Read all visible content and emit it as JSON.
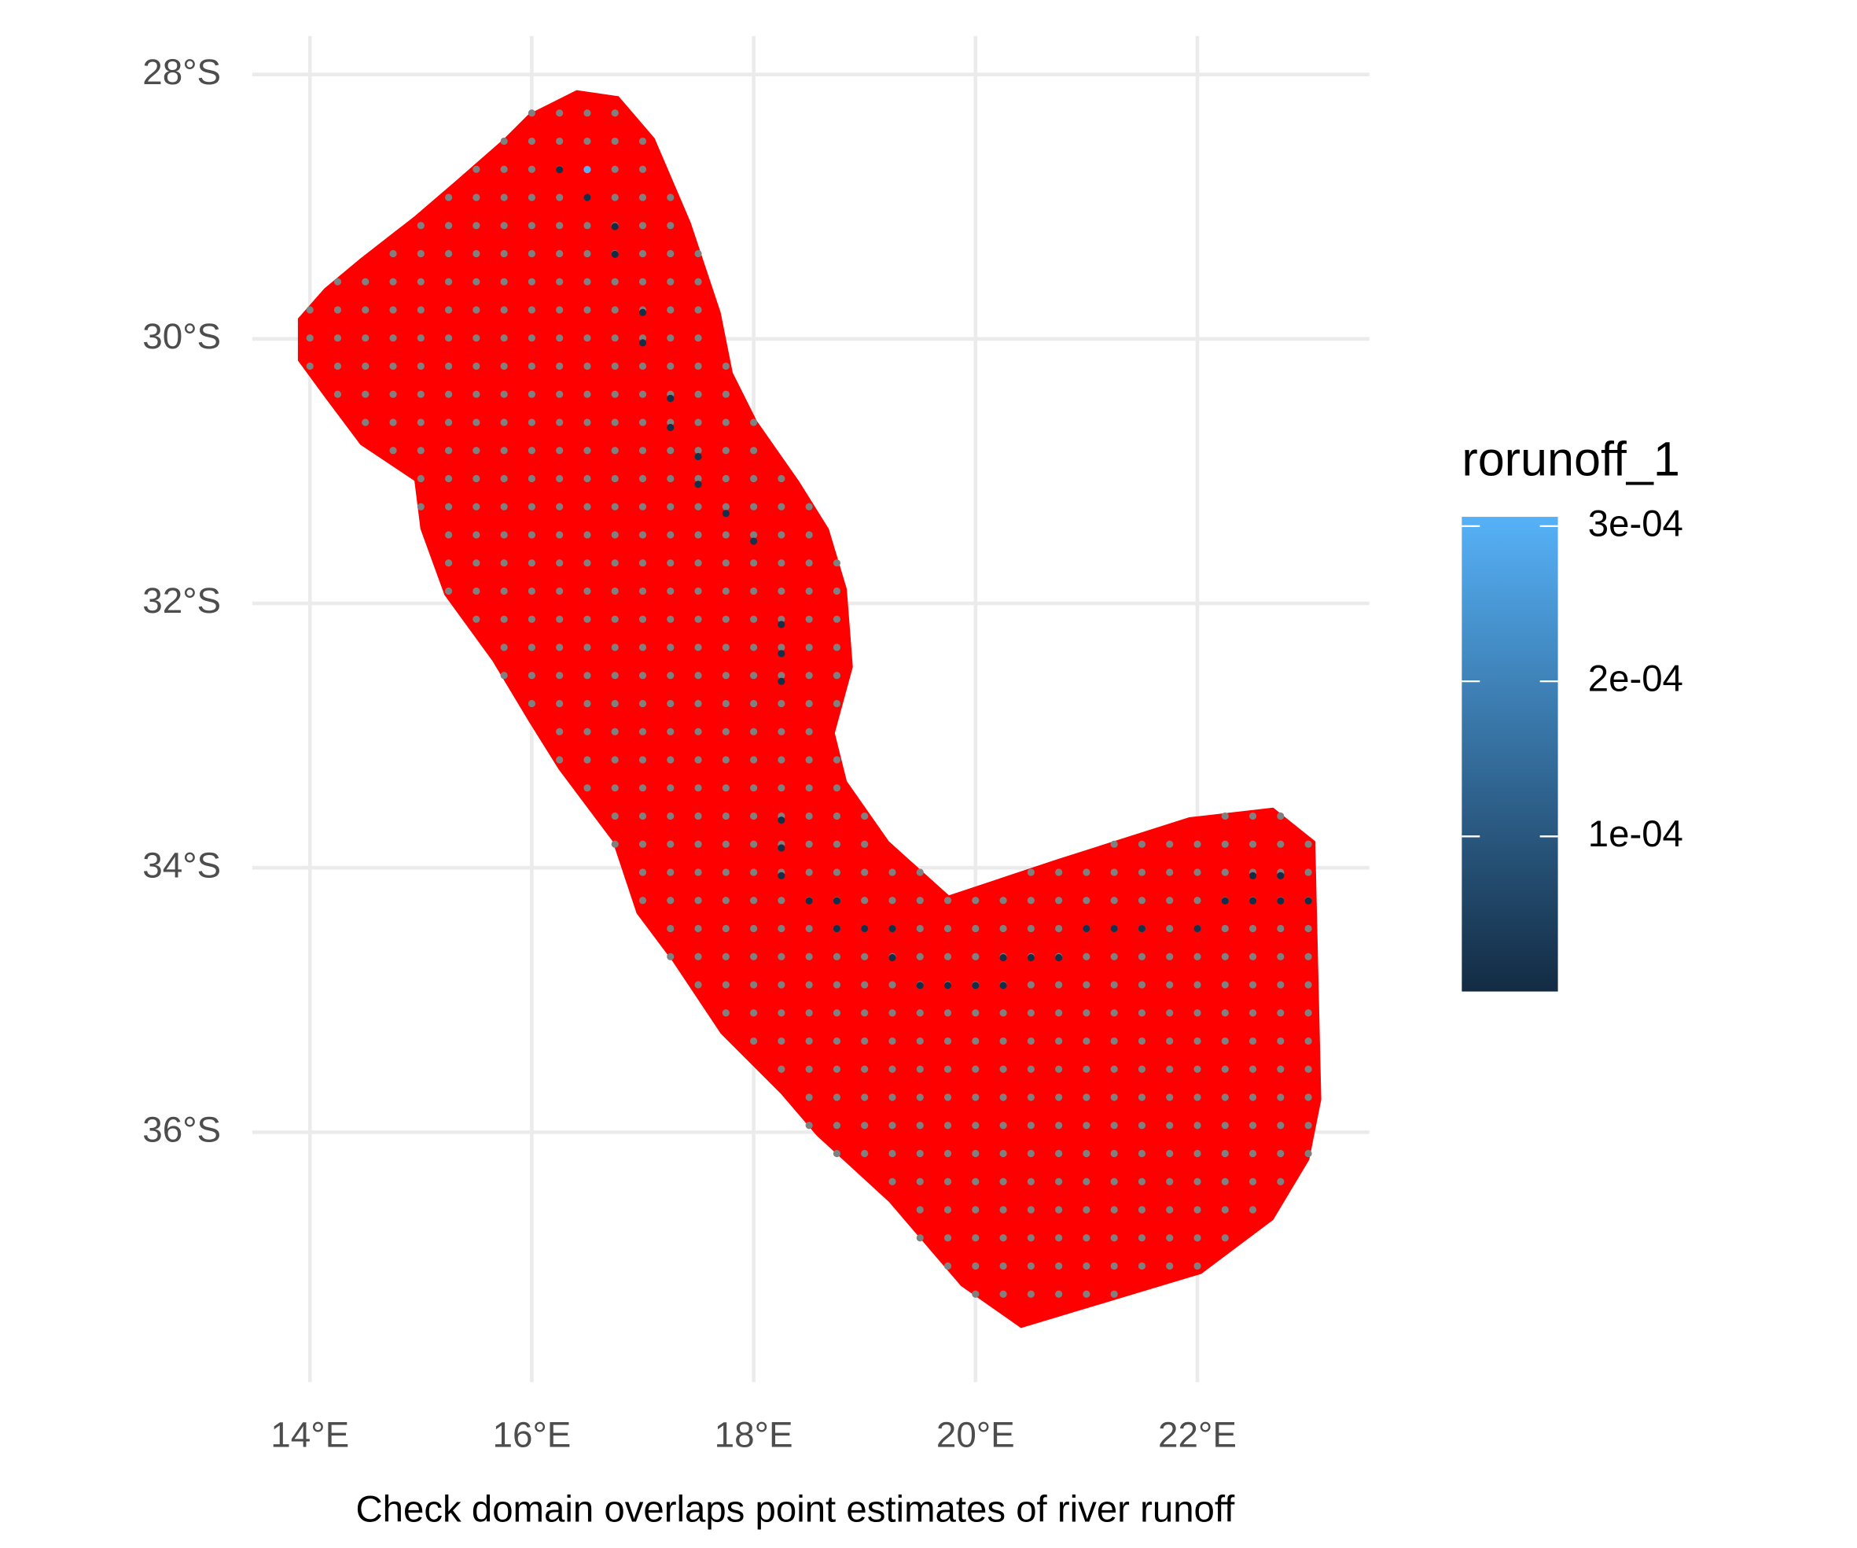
{
  "chart_data": {
    "type": "scatter",
    "xlabel": "Check domain overlaps point estimates of river runoff",
    "legend_title": "rorunoff_1",
    "grid": true,
    "domain_color": "#ff0000",
    "na_color": "#808080",
    "xlim": [
      13.48,
      23.55
    ],
    "ylim": [
      -37.89,
      -27.71
    ],
    "xticks": [
      {
        "value": 14,
        "label": "14°E"
      },
      {
        "value": 16,
        "label": "16°E"
      },
      {
        "value": 18,
        "label": "18°E"
      },
      {
        "value": 20,
        "label": "20°E"
      },
      {
        "value": 22,
        "label": "22°E"
      }
    ],
    "yticks": [
      {
        "value": -28,
        "label": "28°S"
      },
      {
        "value": -30,
        "label": "30°S"
      },
      {
        "value": -32,
        "label": "32°S"
      },
      {
        "value": -34,
        "label": "34°S"
      },
      {
        "value": -36,
        "label": "36°S"
      }
    ],
    "colorbar": {
      "lim": [
        0,
        0.000306
      ],
      "low": "#132B43",
      "high": "#56B1F7",
      "ticks": [
        {
          "value": 0.0001,
          "label": "1e-04"
        },
        {
          "value": 0.0002,
          "label": "2e-04"
        },
        {
          "value": 0.0003,
          "label": "3e-04"
        }
      ]
    },
    "x": [
      16.25,
      16.5,
      16.5,
      16.75,
      16.75,
      17,
      17,
      17.25,
      17.25,
      17.5,
      17.5,
      17.75,
      18,
      18.25,
      18.25,
      18.25,
      18.25,
      18.25,
      18.25,
      18.5,
      18.75,
      18.75,
      19,
      19.25,
      19.25,
      19.5,
      19.75,
      20,
      20.25,
      20.25,
      20.5,
      20.75,
      21,
      21.25,
      21.5,
      22,
      22.25,
      22.5,
      22.75,
      23,
      22.5,
      22.75
    ],
    "y": [
      -28.72,
      -28.72,
      -28.93,
      -29.15,
      -29.36,
      -29.8,
      -30.03,
      -30.45,
      -30.67,
      -30.89,
      -31.1,
      -31.32,
      -31.53,
      -32.16,
      -32.38,
      -32.59,
      -33.64,
      -33.85,
      -34.06,
      -34.25,
      -34.25,
      -34.46,
      -34.46,
      -34.46,
      -34.68,
      -34.89,
      -34.89,
      -34.89,
      -34.89,
      -34.68,
      -34.68,
      -34.68,
      -34.46,
      -34.46,
      -34.46,
      -34.46,
      -34.25,
      -34.25,
      -34.25,
      -34.25,
      -34.06,
      -34.06
    ],
    "values": [
      1e-05,
      0.000306,
      1e-05,
      5e-06,
      5e-06,
      8e-06,
      8e-06,
      1e-05,
      1e-05,
      1.2e-05,
      1.2e-05,
      1.2e-05,
      1.5e-05,
      1e-05,
      1e-05,
      1e-05,
      8e-06,
      8e-06,
      8e-06,
      1e-05,
      1e-05,
      1e-05,
      1.2e-05,
      1.2e-05,
      1e-05,
      1e-05,
      1e-05,
      1e-05,
      1e-05,
      1e-05,
      1.2e-05,
      1.2e-05,
      1.5e-05,
      1.5e-05,
      1.5e-05,
      1.5e-05,
      8e-06,
      8e-06,
      8e-06,
      8e-06,
      5e-06,
      5e-06
    ]
  }
}
